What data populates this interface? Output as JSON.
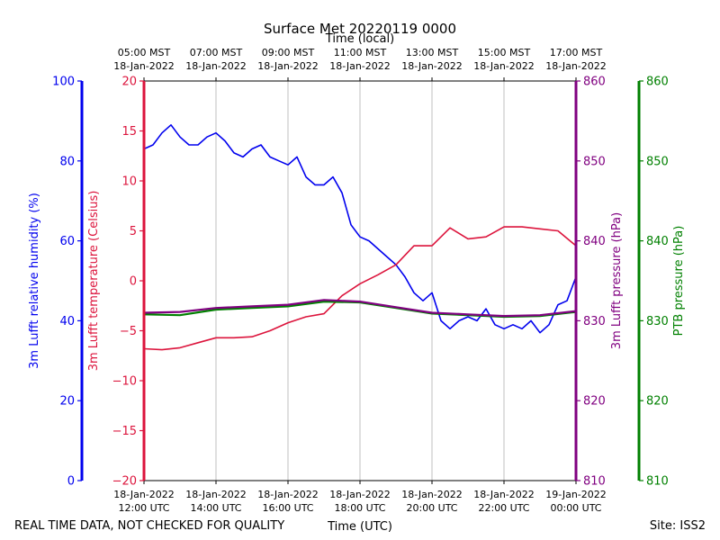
{
  "chart_data": {
    "type": "line",
    "title": "Surface Met 20220119 0000",
    "top_axis_label": "Time (local)",
    "xlabel": "Time (UTC)",
    "x_range": [
      "2022-01-18T12:00Z",
      "2022-01-19T00:00Z"
    ],
    "grid": "vertical",
    "footer_left": "REAL TIME DATA, NOT CHECKED FOR QUALITY",
    "footer_right": "Site: ISS2",
    "x_ticks_utc": [
      {
        "t": "2022-01-18T12:00Z",
        "date": "18-Jan-2022",
        "time": "12:00 UTC"
      },
      {
        "t": "2022-01-18T14:00Z",
        "date": "18-Jan-2022",
        "time": "14:00 UTC"
      },
      {
        "t": "2022-01-18T16:00Z",
        "date": "18-Jan-2022",
        "time": "16:00 UTC"
      },
      {
        "t": "2022-01-18T18:00Z",
        "date": "18-Jan-2022",
        "time": "18:00 UTC"
      },
      {
        "t": "2022-01-18T20:00Z",
        "date": "18-Jan-2022",
        "time": "20:00 UTC"
      },
      {
        "t": "2022-01-18T22:00Z",
        "date": "18-Jan-2022",
        "time": "22:00 UTC"
      },
      {
        "t": "2022-01-19T00:00Z",
        "date": "19-Jan-2022",
        "time": "00:00 UTC"
      }
    ],
    "x_ticks_local": [
      {
        "t": "2022-01-18T12:00Z",
        "time": "05:00 MST",
        "date": "18-Jan-2022"
      },
      {
        "t": "2022-01-18T14:00Z",
        "time": "07:00 MST",
        "date": "18-Jan-2022"
      },
      {
        "t": "2022-01-18T16:00Z",
        "time": "09:00 MST",
        "date": "18-Jan-2022"
      },
      {
        "t": "2022-01-18T18:00Z",
        "time": "11:00 MST",
        "date": "18-Jan-2022"
      },
      {
        "t": "2022-01-18T20:00Z",
        "time": "13:00 MST",
        "date": "18-Jan-2022"
      },
      {
        "t": "2022-01-18T22:00Z",
        "time": "15:00 MST",
        "date": "18-Jan-2022"
      },
      {
        "t": "2022-01-19T00:00Z",
        "time": "17:00 MST",
        "date": "18-Jan-2022"
      }
    ],
    "axes": [
      {
        "id": "rh",
        "label": "3m Lufft relative humidity (%)",
        "color": "#0000ee",
        "ylim": [
          0,
          100
        ],
        "ticks": [
          0,
          20,
          40,
          60,
          80,
          100
        ]
      },
      {
        "id": "temp",
        "label": "3m Lufft temperature (Celsius)",
        "color": "#dc143c",
        "ylim": [
          -20,
          20
        ],
        "ticks": [
          -20,
          -15,
          -10,
          -5,
          0,
          5,
          10,
          15,
          20
        ]
      },
      {
        "id": "pres",
        "label": "3m Lufft pressure (hPa)",
        "color": "#800080",
        "ylim": [
          810,
          860
        ],
        "ticks": [
          810,
          820,
          830,
          840,
          850,
          860
        ]
      },
      {
        "id": "ptb",
        "label": "PTB pressure (hPa)",
        "color": "#008000",
        "ylim": [
          810,
          860
        ],
        "ticks": [
          810,
          820,
          830,
          840,
          850,
          860
        ]
      }
    ],
    "series": [
      {
        "axis": "rh",
        "color": "#0000ee",
        "points": [
          [
            "2022-01-18T12:00Z",
            83
          ],
          [
            "2022-01-18T12:15Z",
            84
          ],
          [
            "2022-01-18T12:30Z",
            87
          ],
          [
            "2022-01-18T12:45Z",
            89
          ],
          [
            "2022-01-18T13:00Z",
            86
          ],
          [
            "2022-01-18T13:15Z",
            84
          ],
          [
            "2022-01-18T13:30Z",
            84
          ],
          [
            "2022-01-18T13:45Z",
            86
          ],
          [
            "2022-01-18T14:00Z",
            87
          ],
          [
            "2022-01-18T14:15Z",
            85
          ],
          [
            "2022-01-18T14:30Z",
            82
          ],
          [
            "2022-01-18T14:45Z",
            81
          ],
          [
            "2022-01-18T15:00Z",
            83
          ],
          [
            "2022-01-18T15:15Z",
            84
          ],
          [
            "2022-01-18T15:30Z",
            81
          ],
          [
            "2022-01-18T15:45Z",
            80
          ],
          [
            "2022-01-18T16:00Z",
            79
          ],
          [
            "2022-01-18T16:15Z",
            81
          ],
          [
            "2022-01-18T16:30Z",
            76
          ],
          [
            "2022-01-18T16:45Z",
            74
          ],
          [
            "2022-01-18T17:00Z",
            74
          ],
          [
            "2022-01-18T17:15Z",
            76
          ],
          [
            "2022-01-18T17:30Z",
            72
          ],
          [
            "2022-01-18T17:45Z",
            64
          ],
          [
            "2022-01-18T18:00Z",
            61
          ],
          [
            "2022-01-18T18:15Z",
            60
          ],
          [
            "2022-01-18T18:30Z",
            58
          ],
          [
            "2022-01-18T18:45Z",
            56
          ],
          [
            "2022-01-18T19:00Z",
            54
          ],
          [
            "2022-01-18T19:15Z",
            51
          ],
          [
            "2022-01-18T19:30Z",
            47
          ],
          [
            "2022-01-18T19:45Z",
            45
          ],
          [
            "2022-01-18T20:00Z",
            47
          ],
          [
            "2022-01-18T20:15Z",
            40
          ],
          [
            "2022-01-18T20:30Z",
            38
          ],
          [
            "2022-01-18T20:45Z",
            40
          ],
          [
            "2022-01-18T21:00Z",
            41
          ],
          [
            "2022-01-18T21:15Z",
            40
          ],
          [
            "2022-01-18T21:30Z",
            43
          ],
          [
            "2022-01-18T21:45Z",
            39
          ],
          [
            "2022-01-18T22:00Z",
            38
          ],
          [
            "2022-01-18T22:15Z",
            39
          ],
          [
            "2022-01-18T22:30Z",
            38
          ],
          [
            "2022-01-18T22:45Z",
            40
          ],
          [
            "2022-01-18T23:00Z",
            37
          ],
          [
            "2022-01-18T23:15Z",
            39
          ],
          [
            "2022-01-18T23:30Z",
            44
          ],
          [
            "2022-01-18T23:45Z",
            45
          ],
          [
            "2022-01-19T00:00Z",
            51
          ]
        ]
      },
      {
        "axis": "temp",
        "color": "#dc143c",
        "points": [
          [
            "2022-01-18T12:00Z",
            -6.8
          ],
          [
            "2022-01-18T12:30Z",
            -6.9
          ],
          [
            "2022-01-18T13:00Z",
            -6.7
          ],
          [
            "2022-01-18T13:30Z",
            -6.2
          ],
          [
            "2022-01-18T14:00Z",
            -5.7
          ],
          [
            "2022-01-18T14:30Z",
            -5.7
          ],
          [
            "2022-01-18T15:00Z",
            -5.6
          ],
          [
            "2022-01-18T15:30Z",
            -5.0
          ],
          [
            "2022-01-18T16:00Z",
            -4.2
          ],
          [
            "2022-01-18T16:30Z",
            -3.6
          ],
          [
            "2022-01-18T17:00Z",
            -3.3
          ],
          [
            "2022-01-18T17:30Z",
            -1.5
          ],
          [
            "2022-01-18T18:00Z",
            -0.3
          ],
          [
            "2022-01-18T18:30Z",
            0.6
          ],
          [
            "2022-01-18T19:00Z",
            1.6
          ],
          [
            "2022-01-18T19:30Z",
            3.5
          ],
          [
            "2022-01-18T20:00Z",
            3.5
          ],
          [
            "2022-01-18T20:30Z",
            5.3
          ],
          [
            "2022-01-18T21:00Z",
            4.2
          ],
          [
            "2022-01-18T21:30Z",
            4.4
          ],
          [
            "2022-01-18T22:00Z",
            5.4
          ],
          [
            "2022-01-18T22:30Z",
            5.4
          ],
          [
            "2022-01-18T23:00Z",
            5.2
          ],
          [
            "2022-01-18T23:30Z",
            5.0
          ],
          [
            "2022-01-19T00:00Z",
            3.5
          ]
        ]
      },
      {
        "axis": "ptb",
        "color": "#008000",
        "points": [
          [
            "2022-01-18T12:00Z",
            830.8
          ],
          [
            "2022-01-18T13:00Z",
            830.7
          ],
          [
            "2022-01-18T14:00Z",
            831.4
          ],
          [
            "2022-01-18T15:00Z",
            831.6
          ],
          [
            "2022-01-18T16:00Z",
            831.8
          ],
          [
            "2022-01-18T17:00Z",
            832.4
          ],
          [
            "2022-01-18T18:00Z",
            832.3
          ],
          [
            "2022-01-18T19:00Z",
            831.6
          ],
          [
            "2022-01-18T20:00Z",
            830.9
          ],
          [
            "2022-01-18T21:00Z",
            830.7
          ],
          [
            "2022-01-18T22:00Z",
            830.5
          ],
          [
            "2022-01-18T23:00Z",
            830.6
          ],
          [
            "2022-01-19T00:00Z",
            831.1
          ]
        ]
      },
      {
        "axis": "pres",
        "color": "#800080",
        "points": [
          [
            "2022-01-18T12:00Z",
            831.0
          ],
          [
            "2022-01-18T13:00Z",
            831.1
          ],
          [
            "2022-01-18T14:00Z",
            831.6
          ],
          [
            "2022-01-18T15:00Z",
            831.8
          ],
          [
            "2022-01-18T16:00Z",
            832.0
          ],
          [
            "2022-01-18T17:00Z",
            832.6
          ],
          [
            "2022-01-18T18:00Z",
            832.4
          ],
          [
            "2022-01-18T19:00Z",
            831.7
          ],
          [
            "2022-01-18T20:00Z",
            831.0
          ],
          [
            "2022-01-18T21:00Z",
            830.8
          ],
          [
            "2022-01-18T22:00Z",
            830.6
          ],
          [
            "2022-01-18T23:00Z",
            830.7
          ],
          [
            "2022-01-19T00:00Z",
            831.2
          ]
        ]
      }
    ]
  }
}
